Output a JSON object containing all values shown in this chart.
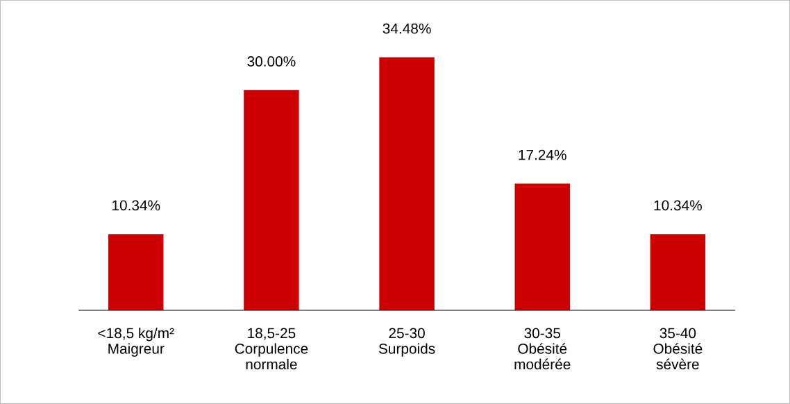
{
  "chart_data": {
    "type": "bar",
    "categories": [
      "<18,5 kg/m²\nMaigreur",
      "18,5-25\nCorpulence\nnormale",
      "25-30\nSurpoids",
      "30-35\nObésité\nmodérée",
      "35-40\nObésité\nsévère"
    ],
    "values": [
      10.34,
      30.0,
      34.48,
      17.24,
      10.34
    ],
    "value_labels": [
      "10.34%",
      "30.00%",
      "34.48%",
      "17.24%",
      "10.34%"
    ],
    "color": "#cc0000",
    "grid": false
  }
}
